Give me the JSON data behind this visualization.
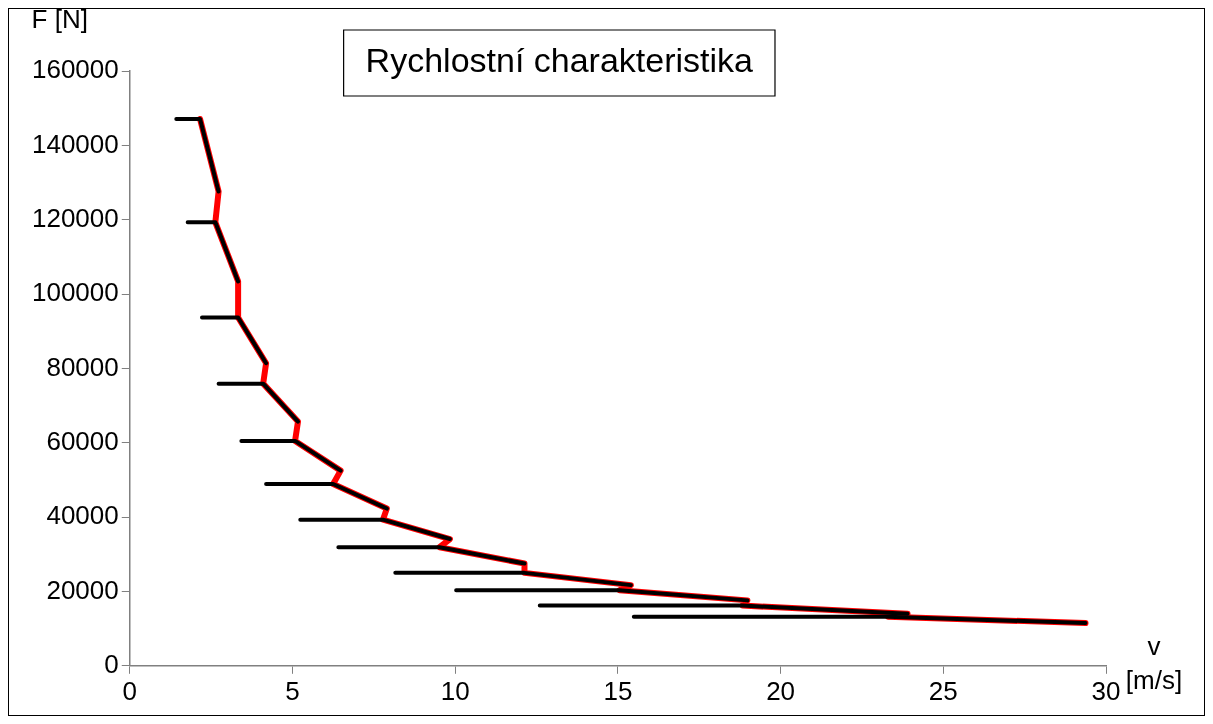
{
  "chart_data": {
    "type": "line",
    "title": "Rychlostní charakteristika",
    "xlabel": "v [m/s]",
    "ylabel": "F [N]",
    "xlim": [
      0,
      30
    ],
    "xticks": [
      0,
      5,
      10,
      15,
      20,
      25,
      30
    ],
    "ylim": [
      0,
      160000
    ],
    "yticks": [
      0,
      20000,
      40000,
      60000,
      80000,
      100000,
      120000,
      140000,
      160000
    ],
    "grid": false,
    "legend": false,
    "marker": "none",
    "line_style": "solid",
    "series": [
      {
        "color": "#ff0000",
        "x": [
          2.16,
          2.73,
          2.63,
          3.33,
          3.33,
          4.19,
          4.1,
          5.17,
          5.08,
          6.48,
          6.25,
          7.9,
          7.78,
          9.84,
          9.52,
          12.13,
          12.13,
          15.4,
          15.05,
          18.98,
          18.83,
          23.9,
          23.3,
          29.37
        ],
        "values": [
          147100,
          127600,
          119300,
          103400,
          93700,
          81400,
          75900,
          65700,
          60500,
          52500,
          48900,
          42300,
          39300,
          34100,
          31900,
          27500,
          25000,
          21700,
          20300,
          17600,
          16200,
          14000,
          13200,
          11500
        ]
      },
      {
        "color": "#000000",
        "x": [
          1.43,
          2.16,
          2.73
        ],
        "values": [
          147100,
          147100,
          127600
        ]
      },
      {
        "color": "#000000",
        "x": [
          1.78,
          2.63,
          3.33
        ],
        "values": [
          119300,
          119300,
          103400
        ]
      },
      {
        "color": "#000000",
        "x": [
          2.22,
          3.33,
          4.19
        ],
        "values": [
          93700,
          93700,
          81400
        ]
      },
      {
        "color": "#000000",
        "x": [
          2.73,
          4.1,
          5.17
        ],
        "values": [
          75900,
          75900,
          65700
        ]
      },
      {
        "color": "#000000",
        "x": [
          3.43,
          5.08,
          6.48
        ],
        "values": [
          60500,
          60500,
          52500
        ]
      },
      {
        "color": "#000000",
        "x": [
          4.19,
          6.25,
          7.9
        ],
        "values": [
          48900,
          48900,
          42300
        ]
      },
      {
        "color": "#000000",
        "x": [
          5.24,
          7.78,
          9.84
        ],
        "values": [
          39300,
          39300,
          34100
        ]
      },
      {
        "color": "#000000",
        "x": [
          6.41,
          9.52,
          12.13
        ],
        "values": [
          31900,
          31900,
          27500
        ]
      },
      {
        "color": "#000000",
        "x": [
          8.16,
          12.13,
          15.4
        ],
        "values": [
          25000,
          25000,
          21700
        ]
      },
      {
        "color": "#000000",
        "x": [
          10.03,
          15.05,
          18.98
        ],
        "values": [
          20300,
          20300,
          17600
        ]
      },
      {
        "color": "#000000",
        "x": [
          12.6,
          18.83,
          23.9
        ],
        "values": [
          16200,
          16200,
          14000
        ]
      },
      {
        "color": "#000000",
        "x": [
          15.49,
          23.3,
          29.37
        ],
        "values": [
          13200,
          13200,
          11500
        ]
      }
    ]
  }
}
